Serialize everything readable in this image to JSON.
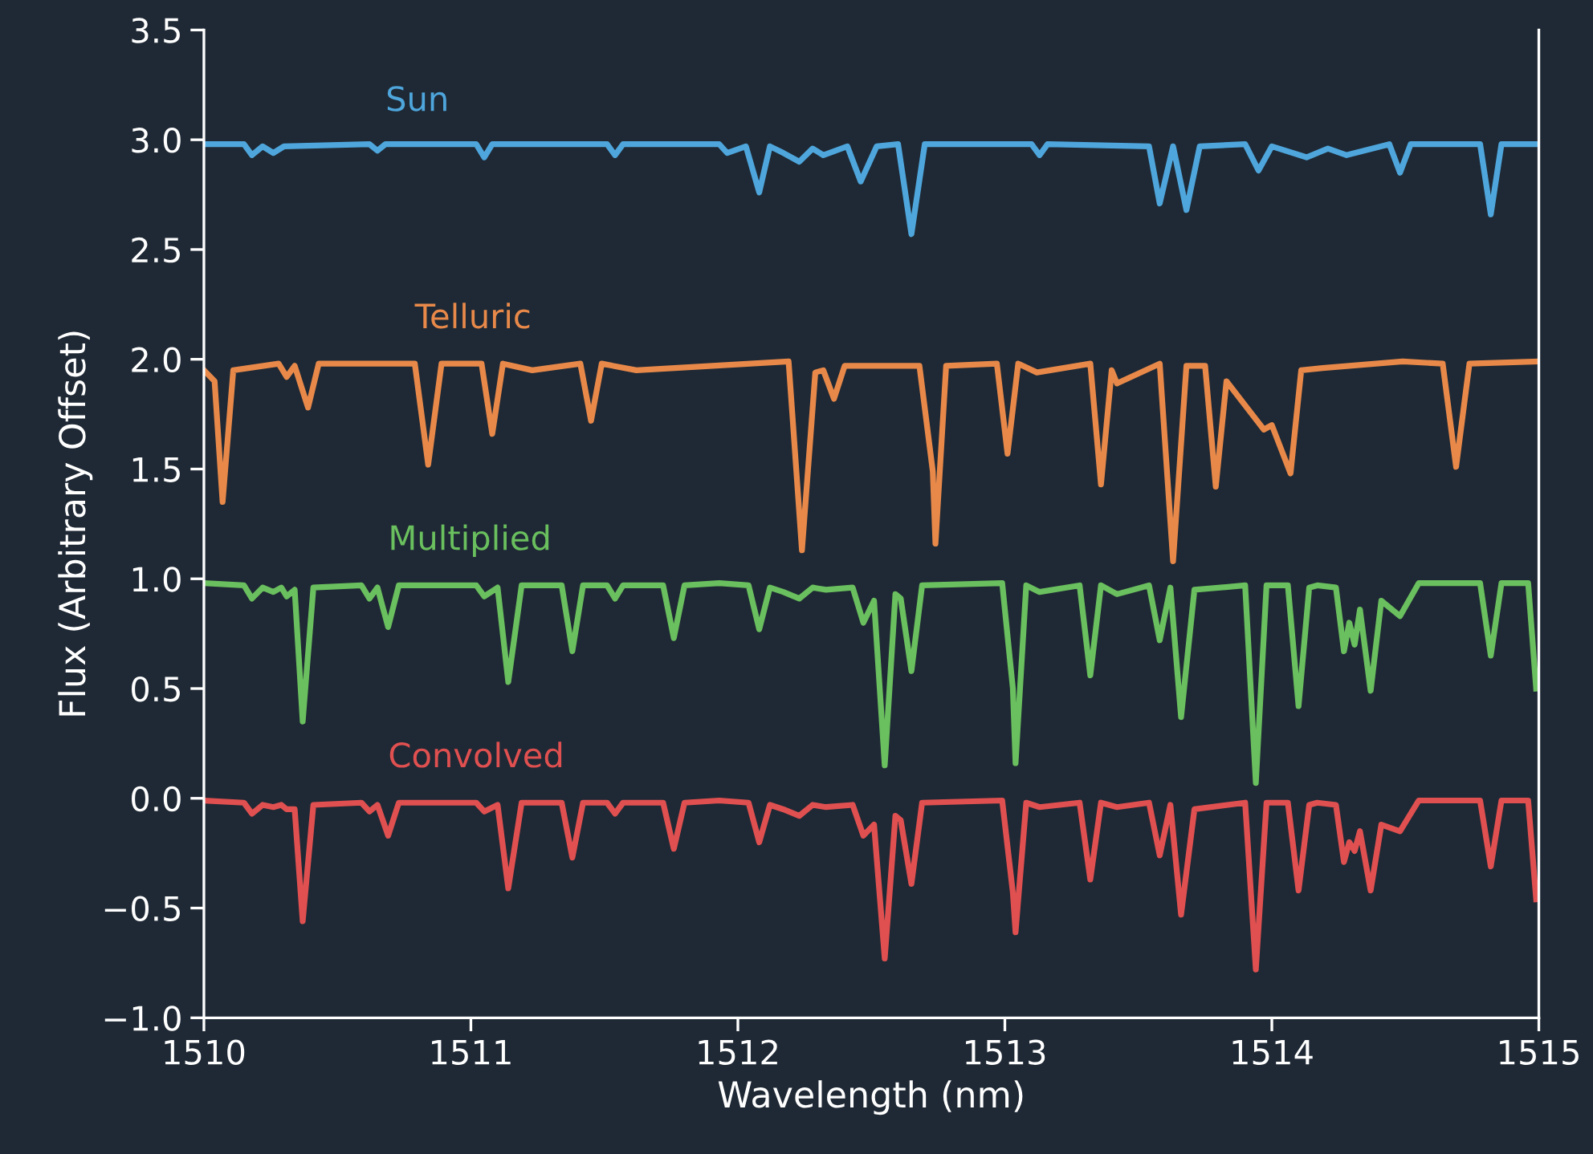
{
  "chart_data": {
    "type": "line",
    "xlabel": "Wavelength (nm)",
    "ylabel": "Flux (Arbitrary Offset)",
    "xlim": [
      1510,
      1515
    ],
    "xticks": [
      1510,
      1511,
      1512,
      1513,
      1514,
      1515
    ],
    "ylim": [
      -1.0,
      3.5
    ],
    "yticks": [
      {
        "value": -1.0,
        "label": "−1.0"
      },
      {
        "value": -0.5,
        "label": "−0.5"
      },
      {
        "value": 0.0,
        "label": "0.0"
      },
      {
        "value": 0.5,
        "label": "0.5"
      },
      {
        "value": 1.0,
        "label": "1.0"
      },
      {
        "value": 1.5,
        "label": "1.5"
      },
      {
        "value": 2.0,
        "label": "2.0"
      },
      {
        "value": 2.5,
        "label": "2.5"
      },
      {
        "value": 3.0,
        "label": "3.0"
      },
      {
        "value": 3.5,
        "label": "3.5"
      }
    ],
    "grid": false,
    "legend": false,
    "marker": "none",
    "line_style": "solid",
    "series": [
      {
        "name": "Sun",
        "color": "#4ea6dc",
        "x": [
          1510,
          1510.15,
          1510.18,
          1510.22,
          1510.26,
          1510.3,
          1510.62,
          1510.65,
          1510.68,
          1511.02,
          1511.05,
          1511.08,
          1511.51,
          1511.54,
          1511.57,
          1511.93,
          1511.96,
          1512.03,
          1512.08,
          1512.12,
          1512.17,
          1512.23,
          1512.28,
          1512.32,
          1512.41,
          1512.46,
          1512.52,
          1512.6,
          1512.65,
          1512.7,
          1513.1,
          1513.13,
          1513.16,
          1513.54,
          1513.58,
          1513.63,
          1513.68,
          1513.73,
          1513.9,
          1513.95,
          1514.0,
          1514.13,
          1514.21,
          1514.28,
          1514.44,
          1514.48,
          1514.52,
          1514.78,
          1514.82,
          1514.86,
          1515
        ],
        "values": [
          2.98,
          2.98,
          2.93,
          2.97,
          2.94,
          2.97,
          2.98,
          2.95,
          2.98,
          2.98,
          2.92,
          2.98,
          2.98,
          2.93,
          2.98,
          2.98,
          2.94,
          2.97,
          2.76,
          2.97,
          2.94,
          2.9,
          2.96,
          2.93,
          2.97,
          2.81,
          2.97,
          2.98,
          2.57,
          2.98,
          2.98,
          2.93,
          2.98,
          2.97,
          2.71,
          2.97,
          2.68,
          2.97,
          2.98,
          2.86,
          2.97,
          2.92,
          2.96,
          2.93,
          2.98,
          2.85,
          2.98,
          2.98,
          2.66,
          2.98,
          2.98
        ]
      },
      {
        "name": "Telluric",
        "color": "#e8894a",
        "x": [
          1510,
          1510.04,
          1510.07,
          1510.11,
          1510.28,
          1510.31,
          1510.34,
          1510.39,
          1510.43,
          1510.79,
          1510.84,
          1510.89,
          1511.04,
          1511.08,
          1511.12,
          1511.23,
          1511.41,
          1511.45,
          1511.49,
          1511.62,
          1512.19,
          1512.24,
          1512.29,
          1512.32,
          1512.36,
          1512.4,
          1512.68,
          1512.73,
          1512.74,
          1512.78,
          1512.97,
          1513.01,
          1513.05,
          1513.12,
          1513.32,
          1513.36,
          1513.4,
          1513.42,
          1513.58,
          1513.63,
          1513.68,
          1513.75,
          1513.79,
          1513.83,
          1513.97,
          1514.0,
          1514.07,
          1514.11,
          1514.19,
          1514.49,
          1514.64,
          1514.69,
          1514.74,
          1515
        ],
        "values": [
          1.95,
          1.9,
          1.35,
          1.95,
          1.98,
          1.92,
          1.97,
          1.78,
          1.98,
          1.98,
          1.52,
          1.98,
          1.98,
          1.66,
          1.98,
          1.95,
          1.98,
          1.72,
          1.98,
          1.95,
          1.99,
          1.13,
          1.94,
          1.95,
          1.82,
          1.97,
          1.97,
          1.49,
          1.16,
          1.97,
          1.98,
          1.57,
          1.98,
          1.94,
          1.98,
          1.43,
          1.95,
          1.89,
          1.98,
          1.08,
          1.97,
          1.97,
          1.42,
          1.9,
          1.68,
          1.7,
          1.48,
          1.95,
          1.96,
          1.99,
          1.98,
          1.51,
          1.98,
          1.99
        ]
      },
      {
        "name": "Multiplied",
        "color": "#6abf5e",
        "x": [
          1510,
          1510.15,
          1510.18,
          1510.22,
          1510.26,
          1510.29,
          1510.31,
          1510.34,
          1510.37,
          1510.41,
          1510.59,
          1510.62,
          1510.65,
          1510.69,
          1510.73,
          1511.02,
          1511.05,
          1511.1,
          1511.14,
          1511.19,
          1511.34,
          1511.38,
          1511.42,
          1511.51,
          1511.54,
          1511.57,
          1511.72,
          1511.76,
          1511.8,
          1511.93,
          1512.04,
          1512.08,
          1512.12,
          1512.17,
          1512.23,
          1512.28,
          1512.33,
          1512.43,
          1512.47,
          1512.51,
          1512.55,
          1512.59,
          1512.61,
          1512.65,
          1512.69,
          1512.99,
          1513.03,
          1513.04,
          1513.08,
          1513.13,
          1513.28,
          1513.32,
          1513.36,
          1513.42,
          1513.54,
          1513.58,
          1513.62,
          1513.66,
          1513.71,
          1513.9,
          1513.94,
          1513.98,
          1514.06,
          1514.1,
          1514.14,
          1514.17,
          1514.24,
          1514.27,
          1514.29,
          1514.31,
          1514.33,
          1514.37,
          1514.41,
          1514.48,
          1514.55,
          1514.78,
          1514.82,
          1514.86,
          1514.96,
          1514.99
        ],
        "values": [
          0.98,
          0.97,
          0.91,
          0.96,
          0.94,
          0.96,
          0.92,
          0.95,
          0.35,
          0.96,
          0.97,
          0.91,
          0.96,
          0.78,
          0.97,
          0.97,
          0.92,
          0.96,
          0.53,
          0.97,
          0.97,
          0.67,
          0.97,
          0.97,
          0.91,
          0.97,
          0.97,
          0.73,
          0.97,
          0.98,
          0.97,
          0.77,
          0.96,
          0.94,
          0.91,
          0.96,
          0.95,
          0.96,
          0.8,
          0.9,
          0.15,
          0.93,
          0.91,
          0.58,
          0.97,
          0.98,
          0.5,
          0.16,
          0.97,
          0.94,
          0.97,
          0.56,
          0.97,
          0.93,
          0.97,
          0.72,
          0.96,
          0.37,
          0.95,
          0.97,
          0.07,
          0.97,
          0.97,
          0.42,
          0.96,
          0.97,
          0.96,
          0.67,
          0.8,
          0.7,
          0.86,
          0.49,
          0.9,
          0.83,
          0.98,
          0.98,
          0.65,
          0.98,
          0.98,
          0.5
        ]
      },
      {
        "name": "Convolved",
        "color": "#e05050",
        "x": [
          1510,
          1510.15,
          1510.18,
          1510.22,
          1510.26,
          1510.29,
          1510.31,
          1510.34,
          1510.37,
          1510.41,
          1510.59,
          1510.62,
          1510.65,
          1510.69,
          1510.73,
          1511.02,
          1511.05,
          1511.1,
          1511.14,
          1511.19,
          1511.34,
          1511.38,
          1511.42,
          1511.51,
          1511.54,
          1511.57,
          1511.72,
          1511.76,
          1511.8,
          1511.93,
          1512.04,
          1512.08,
          1512.12,
          1512.17,
          1512.23,
          1512.28,
          1512.33,
          1512.43,
          1512.47,
          1512.51,
          1512.55,
          1512.59,
          1512.61,
          1512.65,
          1512.69,
          1512.99,
          1513.03,
          1513.04,
          1513.08,
          1513.13,
          1513.28,
          1513.32,
          1513.36,
          1513.42,
          1513.54,
          1513.58,
          1513.62,
          1513.66,
          1513.71,
          1513.9,
          1513.94,
          1513.98,
          1514.06,
          1514.1,
          1514.14,
          1514.17,
          1514.24,
          1514.27,
          1514.29,
          1514.31,
          1514.33,
          1514.37,
          1514.41,
          1514.48,
          1514.55,
          1514.78,
          1514.82,
          1514.86,
          1514.96,
          1514.99
        ],
        "values": [
          -0.01,
          -0.02,
          -0.07,
          -0.03,
          -0.04,
          -0.03,
          -0.05,
          -0.05,
          -0.56,
          -0.03,
          -0.02,
          -0.06,
          -0.03,
          -0.17,
          -0.02,
          -0.02,
          -0.06,
          -0.03,
          -0.41,
          -0.02,
          -0.02,
          -0.27,
          -0.02,
          -0.02,
          -0.07,
          -0.02,
          -0.02,
          -0.23,
          -0.02,
          -0.01,
          -0.02,
          -0.2,
          -0.03,
          -0.05,
          -0.08,
          -0.03,
          -0.04,
          -0.03,
          -0.17,
          -0.12,
          -0.73,
          -0.08,
          -0.1,
          -0.39,
          -0.02,
          -0.01,
          -0.43,
          -0.61,
          -0.02,
          -0.04,
          -0.02,
          -0.37,
          -0.02,
          -0.04,
          -0.02,
          -0.26,
          -0.03,
          -0.53,
          -0.05,
          -0.02,
          -0.78,
          -0.02,
          -0.02,
          -0.42,
          -0.03,
          -0.02,
          -0.03,
          -0.29,
          -0.2,
          -0.24,
          -0.15,
          -0.42,
          -0.12,
          -0.15,
          -0.01,
          -0.01,
          -0.31,
          -0.01,
          -0.01,
          -0.46
        ]
      }
    ]
  }
}
